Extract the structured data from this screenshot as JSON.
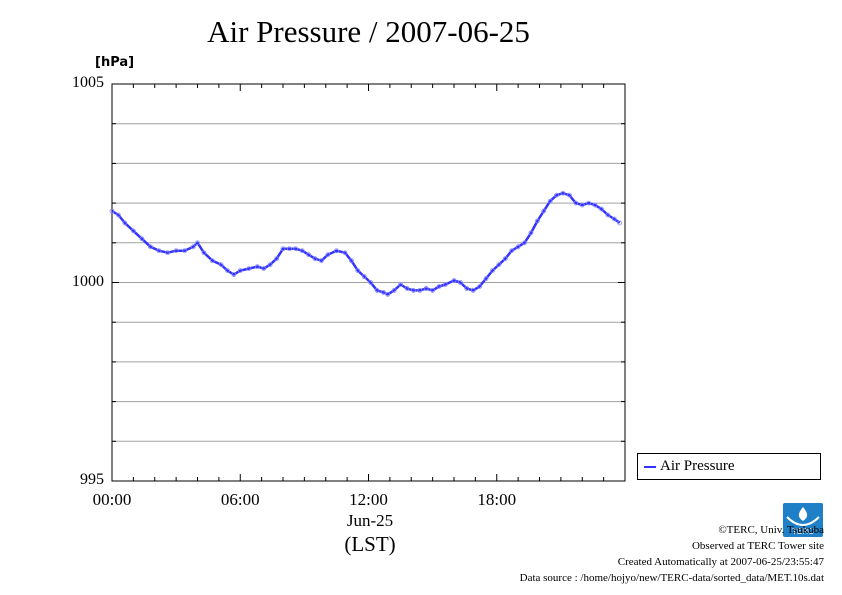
{
  "title": "Air Pressure / 2007-06-25",
  "unit": "[hPa]",
  "x_date": "Jun-25",
  "x_timezone": "(LST)",
  "legend": {
    "label": "Air Pressure"
  },
  "credits": {
    "line1": "©TERC, Univ. Tsukuba",
    "line2": "Observed at TERC Tower site",
    "line3": "Created Automatically at 2007-06-25/23:55:47",
    "line4": "Data source : /home/hojyo/new/TERC-data/sorted_data/MET.10s.dat"
  },
  "logo": {
    "text": "TERC",
    "color": "#1f7fc7"
  },
  "colors": {
    "series": "#3333ff",
    "marker": "#8888ff",
    "grid": "#a0a0a0"
  },
  "chart_data": {
    "type": "line",
    "title": "Air Pressure / 2007-06-25",
    "ylabel": "[hPa]",
    "xlabel": "Jun-25 (LST)",
    "ylim": [
      995,
      1005
    ],
    "xlim_hours": [
      0,
      24
    ],
    "y_ticks": [
      995,
      1000,
      1005
    ],
    "y_tick_labels": [
      "995",
      "1000",
      "1005"
    ],
    "x_ticks": [
      0,
      6,
      12,
      18
    ],
    "x_tick_labels": [
      "00:00",
      "06:00",
      "12:00",
      "18:00"
    ],
    "grid": true,
    "legend_position": "bottom-right, outside plot",
    "series": [
      {
        "name": "Air Pressure",
        "x": [
          0.0,
          0.3,
          0.6,
          1.0,
          1.4,
          1.8,
          2.2,
          2.6,
          3.0,
          3.4,
          3.8,
          4.0,
          4.3,
          4.7,
          5.1,
          5.4,
          5.7,
          6.0,
          6.4,
          6.8,
          7.1,
          7.4,
          7.7,
          8.0,
          8.3,
          8.6,
          8.9,
          9.2,
          9.5,
          9.8,
          10.1,
          10.5,
          10.9,
          11.2,
          11.5,
          11.8,
          12.1,
          12.4,
          12.7,
          12.9,
          13.2,
          13.5,
          13.8,
          14.1,
          14.4,
          14.7,
          15.0,
          15.3,
          15.6,
          16.0,
          16.3,
          16.6,
          16.9,
          17.2,
          17.5,
          17.8,
          18.1,
          18.4,
          18.7,
          19.0,
          19.3,
          19.6,
          19.9,
          20.2,
          20.5,
          20.8,
          21.1,
          21.4,
          21.7,
          22.0,
          22.3,
          22.6,
          22.9,
          23.2,
          23.5,
          23.75
        ],
        "y": [
          1001.8,
          1001.7,
          1001.5,
          1001.3,
          1001.1,
          1000.9,
          1000.8,
          1000.75,
          1000.8,
          1000.8,
          1000.9,
          1001.0,
          1000.75,
          1000.55,
          1000.45,
          1000.3,
          1000.2,
          1000.3,
          1000.35,
          1000.4,
          1000.35,
          1000.45,
          1000.6,
          1000.85,
          1000.85,
          1000.85,
          1000.8,
          1000.7,
          1000.6,
          1000.55,
          1000.7,
          1000.8,
          1000.75,
          1000.55,
          1000.3,
          1000.15,
          1000.0,
          999.8,
          999.75,
          999.7,
          999.8,
          999.95,
          999.85,
          999.8,
          999.8,
          999.85,
          999.8,
          999.9,
          999.95,
          1000.05,
          1000.0,
          999.85,
          999.8,
          999.9,
          1000.1,
          1000.3,
          1000.45,
          1000.6,
          1000.8,
          1000.9,
          1001.0,
          1001.25,
          1001.55,
          1001.8,
          1002.05,
          1002.2,
          1002.25,
          1002.2,
          1002.0,
          1001.95,
          1002.0,
          1001.95,
          1001.85,
          1001.7,
          1001.6,
          1001.5
        ]
      }
    ]
  }
}
